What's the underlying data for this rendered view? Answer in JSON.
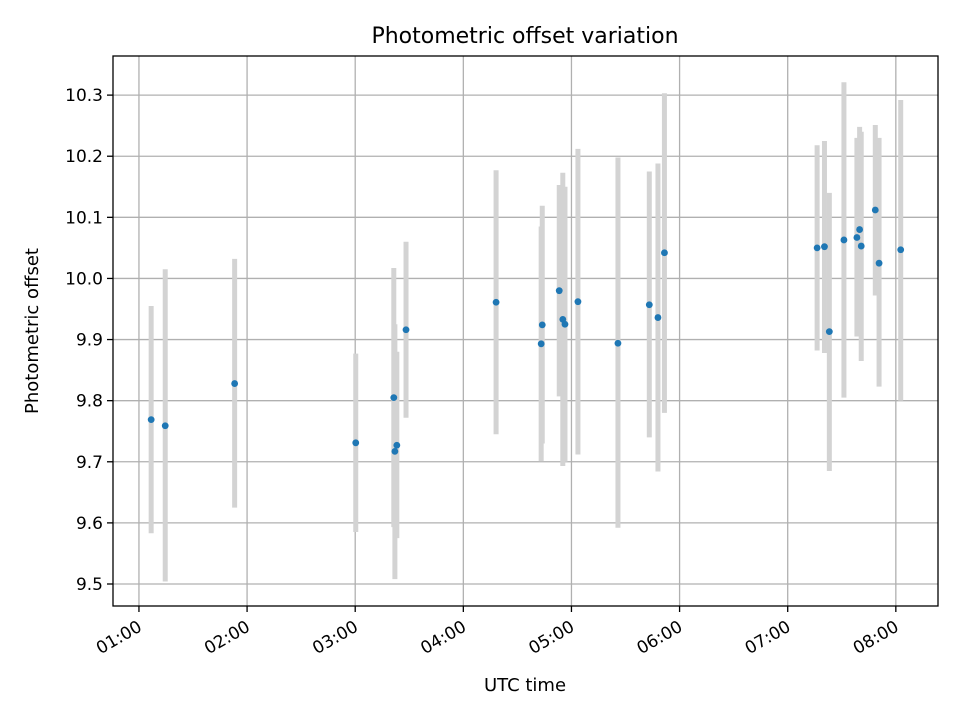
{
  "chart_data": {
    "type": "scatter",
    "title": "Photometric offset variation",
    "xlabel": "UTC time",
    "ylabel": "Photometric offset",
    "x_ticks": [
      "01:00",
      "02:00",
      "03:00",
      "04:00",
      "05:00",
      "06:00",
      "07:00",
      "08:00"
    ],
    "y_ticks": [
      "9.5",
      "9.6",
      "9.7",
      "9.8",
      "9.9",
      "10.0",
      "10.1",
      "10.2",
      "10.3"
    ],
    "x_unit": "hours UTC",
    "xlim": [
      0.76,
      8.39
    ],
    "ylim": [
      9.464,
      10.364
    ],
    "grid": true,
    "colors": {
      "points": "#1f77b4",
      "error_bars": "#d3d3d3"
    },
    "points": [
      {
        "x": 1.113,
        "y": 9.769,
        "ylo": 9.583,
        "yhi": 9.955
      },
      {
        "x": 1.243,
        "y": 9.759,
        "ylo": 9.504,
        "yhi": 10.015
      },
      {
        "x": 1.885,
        "y": 9.828,
        "ylo": 9.625,
        "yhi": 10.032
      },
      {
        "x": 3.005,
        "y": 9.731,
        "ylo": 9.585,
        "yhi": 9.877
      },
      {
        "x": 3.357,
        "y": 9.805,
        "ylo": 9.593,
        "yhi": 10.017
      },
      {
        "x": 3.367,
        "y": 9.717,
        "ylo": 9.508,
        "yhi": 9.925
      },
      {
        "x": 3.385,
        "y": 9.727,
        "ylo": 9.575,
        "yhi": 9.88
      },
      {
        "x": 3.47,
        "y": 9.916,
        "ylo": 9.772,
        "yhi": 10.06
      },
      {
        "x": 4.303,
        "y": 9.961,
        "ylo": 9.745,
        "yhi": 10.177
      },
      {
        "x": 4.72,
        "y": 9.893,
        "ylo": 9.701,
        "yhi": 10.085
      },
      {
        "x": 4.73,
        "y": 9.924,
        "ylo": 9.73,
        "yhi": 10.119
      },
      {
        "x": 4.887,
        "y": 9.98,
        "ylo": 9.807,
        "yhi": 10.153
      },
      {
        "x": 4.92,
        "y": 9.933,
        "ylo": 9.693,
        "yhi": 10.173
      },
      {
        "x": 4.94,
        "y": 9.925,
        "ylo": 9.7,
        "yhi": 10.15
      },
      {
        "x": 5.06,
        "y": 9.962,
        "ylo": 9.712,
        "yhi": 10.212
      },
      {
        "x": 5.43,
        "y": 9.894,
        "ylo": 9.592,
        "yhi": 10.198
      },
      {
        "x": 5.72,
        "y": 9.957,
        "ylo": 9.74,
        "yhi": 10.175
      },
      {
        "x": 5.8,
        "y": 9.936,
        "ylo": 9.684,
        "yhi": 10.188
      },
      {
        "x": 5.86,
        "y": 10.042,
        "ylo": 9.78,
        "yhi": 10.303
      },
      {
        "x": 7.272,
        "y": 10.05,
        "ylo": 9.882,
        "yhi": 10.218
      },
      {
        "x": 7.34,
        "y": 10.052,
        "ylo": 9.878,
        "yhi": 10.225
      },
      {
        "x": 7.385,
        "y": 9.913,
        "ylo": 9.685,
        "yhi": 10.14
      },
      {
        "x": 7.52,
        "y": 10.063,
        "ylo": 9.805,
        "yhi": 10.321
      },
      {
        "x": 7.64,
        "y": 10.067,
        "ylo": 9.905,
        "yhi": 10.23
      },
      {
        "x": 7.665,
        "y": 10.08,
        "ylo": 9.92,
        "yhi": 10.248
      },
      {
        "x": 7.68,
        "y": 10.053,
        "ylo": 9.865,
        "yhi": 10.24
      },
      {
        "x": 7.81,
        "y": 10.112,
        "ylo": 9.972,
        "yhi": 10.251
      },
      {
        "x": 7.845,
        "y": 10.025,
        "ylo": 9.823,
        "yhi": 10.23
      },
      {
        "x": 8.045,
        "y": 10.047,
        "ylo": 9.8,
        "yhi": 10.292
      }
    ]
  }
}
